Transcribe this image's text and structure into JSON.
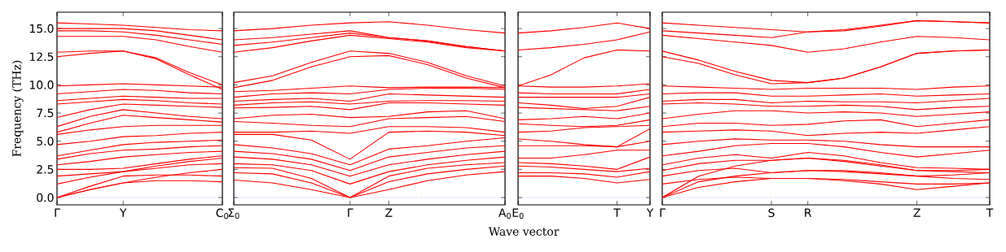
{
  "chart_data": [
    {
      "type": "line",
      "color": "#ff0000",
      "ylabel": "Frequency (THz)",
      "categories": [
        "Γ",
        null,
        "Y",
        null,
        null,
        "C$_{0}$"
      ],
      "ylim": [
        -0.65,
        16.45
      ],
      "yticks": [
        {
          "value": 0,
          "label": "0.0"
        },
        {
          "value": 2.5,
          "label": "2.5"
        },
        {
          "value": 5,
          "label": "5.0"
        },
        {
          "value": 7.5,
          "label": "7.5"
        },
        {
          "value": 10,
          "label": "10.0"
        },
        {
          "value": 12.5,
          "label": "12.5"
        },
        {
          "value": 15,
          "label": "15.0"
        }
      ],
      "ref_lines": [
        {
          "axis": "y",
          "value": 0,
          "color": "#0000ff",
          "line_style": "dotted"
        }
      ],
      "series": [
        {
          "values": [
            15.5,
            15.4,
            15.3,
            15.1,
            14.9,
            14.8
          ]
        },
        {
          "values": [
            15.0,
            15.0,
            15.0,
            14.8,
            14.4,
            14.0
          ]
        },
        {
          "values": [
            14.8,
            14.8,
            14.7,
            14.4,
            14.0,
            13.6
          ]
        },
        {
          "values": [
            14.3,
            14.3,
            14.3,
            14.0,
            13.4,
            12.9
          ]
        },
        {
          "values": [
            12.9,
            13.0,
            13.0,
            12.4,
            11.1,
            10.0
          ]
        },
        {
          "values": [
            12.5,
            12.8,
            13.0,
            12.3,
            10.9,
            9.6
          ]
        },
        {
          "values": [
            9.9,
            10.0,
            10.1,
            10.0,
            9.9,
            9.8
          ]
        },
        {
          "values": [
            9.2,
            9.4,
            9.6,
            9.5,
            9.3,
            9.2
          ]
        },
        {
          "values": [
            8.6,
            8.8,
            9.0,
            8.9,
            8.8,
            8.8
          ]
        },
        {
          "values": [
            8.3,
            8.5,
            8.7,
            8.6,
            8.4,
            8.3
          ]
        },
        {
          "values": [
            7.1,
            7.8,
            8.3,
            8.2,
            8.1,
            8.0
          ]
        },
        {
          "values": [
            6.3,
            7.2,
            7.8,
            7.5,
            7.2,
            7.0
          ]
        },
        {
          "values": [
            5.8,
            6.6,
            7.3,
            7.1,
            6.9,
            6.7
          ]
        },
        {
          "values": [
            5.6,
            6.0,
            6.3,
            6.4,
            6.4,
            6.4
          ]
        },
        {
          "values": [
            4.7,
            5.0,
            5.4,
            5.5,
            5.7,
            5.8
          ]
        },
        {
          "values": [
            3.7,
            4.2,
            4.7,
            4.9,
            5.0,
            5.1
          ]
        },
        {
          "values": [
            3.4,
            3.9,
            4.2,
            4.3,
            4.5,
            4.6
          ]
        },
        {
          "values": [
            2.9,
            3.2,
            3.6,
            3.8,
            4.0,
            4.1
          ]
        },
        {
          "values": [
            2.5,
            2.5,
            2.6,
            3.0,
            3.4,
            3.7
          ]
        },
        {
          "values": [
            1.9,
            2.1,
            2.3,
            2.8,
            3.2,
            3.5
          ]
        },
        {
          "values": [
            1.2,
            1.8,
            2.3,
            2.6,
            2.9,
            3.0
          ]
        },
        {
          "values": [
            0,
            0.7,
            1.3,
            1.8,
            2.2,
            2.5
          ]
        },
        {
          "values": [
            0,
            1.0,
            1.9,
            2.0,
            2.0,
            1.9
          ]
        },
        {
          "values": [
            0,
            0.7,
            1.3,
            1.5,
            1.5,
            1.4
          ]
        }
      ]
    },
    {
      "type": "line",
      "color": "#ff0000",
      "xlabel": "Wave vector",
      "tick_labels": "x",
      "categories": [
        "Σ$_{0}$",
        null,
        null,
        "Γ",
        "Z",
        null,
        null,
        "A$_{0}$"
      ],
      "ylim": [
        -0.65,
        16.45
      ],
      "yticks": [
        0,
        2.5,
        5,
        7.5,
        10,
        12.5,
        15
      ],
      "ref_lines": [
        {
          "axis": "y",
          "value": 0,
          "color": "#0000ff",
          "line_style": "dotted"
        }
      ],
      "series": [
        {
          "values": [
            14.8,
            15.0,
            15.3,
            15.5,
            15.6,
            15.3,
            14.9,
            14.6
          ]
        },
        {
          "values": [
            14.0,
            14.2,
            14.5,
            14.8,
            14.2,
            13.9,
            13.4,
            13.0
          ]
        },
        {
          "values": [
            13.5,
            13.8,
            14.2,
            14.6,
            14.2,
            13.9,
            13.4,
            13.0
          ]
        },
        {
          "values": [
            12.9,
            13.3,
            13.9,
            14.4,
            14.1,
            13.8,
            13.3,
            13.0
          ]
        },
        {
          "values": [
            10.2,
            10.8,
            12.0,
            13.0,
            12.8,
            12.0,
            10.8,
            9.9
          ]
        },
        {
          "values": [
            9.75,
            10.4,
            11.6,
            12.5,
            12.6,
            11.8,
            10.6,
            9.75
          ]
        },
        {
          "values": [
            9.4,
            9.5,
            9.7,
            9.9,
            9.75,
            9.8,
            9.8,
            9.75
          ]
        },
        {
          "values": [
            8.9,
            9.2,
            9.3,
            9.2,
            9.6,
            9.7,
            9.7,
            9.6
          ]
        },
        {
          "values": [
            8.55,
            8.7,
            8.8,
            8.55,
            9.2,
            9.1,
            9.0,
            8.9
          ]
        },
        {
          "values": [
            8.2,
            8.4,
            8.5,
            8.3,
            8.55,
            8.6,
            8.6,
            8.55
          ]
        },
        {
          "values": [
            7.95,
            8.0,
            8.1,
            7.8,
            8.4,
            8.4,
            8.3,
            8.2
          ]
        },
        {
          "values": [
            7.0,
            7.3,
            7.4,
            7.1,
            7.2,
            7.6,
            7.7,
            7.0
          ]
        },
        {
          "values": [
            6.75,
            6.6,
            6.4,
            6.3,
            7.0,
            7.1,
            7.2,
            6.75
          ]
        },
        {
          "values": [
            5.8,
            5.8,
            5.9,
            5.7,
            6.3,
            6.3,
            6.2,
            5.8
          ]
        },
        {
          "values": [
            5.6,
            5.6,
            5.1,
            3.4,
            5.8,
            5.9,
            5.8,
            5.5
          ]
        },
        {
          "values": [
            4.7,
            4.4,
            3.9,
            2.9,
            4.3,
            4.6,
            5.0,
            5.3
          ]
        },
        {
          "values": [
            4.1,
            3.9,
            3.4,
            2.4,
            3.6,
            4.0,
            4.4,
            4.6
          ]
        },
        {
          "values": [
            3.6,
            3.4,
            2.9,
            1.9,
            2.9,
            3.4,
            3.8,
            4.1
          ]
        },
        {
          "values": [
            3.0,
            2.9,
            2.4,
            1.2,
            2.3,
            2.9,
            3.3,
            3.6
          ]
        },
        {
          "values": [
            2.65,
            2.6,
            1.7,
            0,
            1.9,
            2.6,
            2.9,
            3.1
          ]
        },
        {
          "values": [
            2.2,
            2.1,
            1.3,
            0,
            1.4,
            2.1,
            2.5,
            2.8
          ]
        },
        {
          "values": [
            1.55,
            1.3,
            0.7,
            0,
            0.7,
            1.5,
            2.0,
            2.3
          ]
        }
      ]
    },
    {
      "type": "line",
      "color": "#ff0000",
      "tick_labels": "x",
      "categories": [
        "E$_{0}$",
        null,
        null,
        "T",
        "Y"
      ],
      "ylim": [
        -0.65,
        16.45
      ],
      "yticks": [
        0,
        2.5,
        5,
        7.5,
        10,
        12.5,
        15
      ],
      "ref_lines": [
        {
          "axis": "y",
          "value": 0,
          "color": "#0000ff",
          "line_style": "dotted"
        }
      ],
      "series": [
        {
          "values": [
            14.6,
            14.8,
            15.1,
            15.5,
            15.0
          ]
        },
        {
          "values": [
            13.1,
            13.3,
            13.6,
            14.0,
            14.7
          ]
        },
        {
          "values": [
            9.9,
            10.9,
            12.4,
            13.1,
            13.0
          ]
        },
        {
          "values": [
            9.9,
            9.8,
            9.8,
            9.9,
            10.1
          ]
        },
        {
          "values": [
            9.3,
            9.2,
            9.2,
            9.2,
            9.6
          ]
        },
        {
          "values": [
            8.9,
            8.9,
            8.9,
            8.9,
            9.2
          ]
        },
        {
          "values": [
            8.4,
            8.2,
            7.9,
            8.1,
            8.9
          ]
        },
        {
          "values": [
            8.0,
            7.9,
            7.8,
            7.7,
            8.1
          ]
        },
        {
          "values": [
            6.9,
            7.0,
            7.2,
            7.0,
            7.5
          ]
        },
        {
          "values": [
            6.55,
            6.4,
            6.3,
            6.4,
            6.9
          ]
        },
        {
          "values": [
            5.8,
            5.9,
            6.2,
            6.3,
            6.4
          ]
        },
        {
          "values": [
            5.2,
            5.0,
            4.7,
            4.5,
            6.1
          ]
        },
        {
          "values": [
            4.6,
            4.6,
            4.6,
            4.5,
            5.0
          ]
        },
        {
          "values": [
            3.5,
            3.5,
            3.8,
            4.2,
            4.2
          ]
        },
        {
          "values": [
            3.1,
            3.0,
            2.8,
            2.5,
            3.6
          ]
        },
        {
          "values": [
            2.8,
            2.7,
            2.5,
            2.3,
            2.6
          ]
        },
        {
          "values": [
            2.2,
            2.2,
            2.1,
            1.8,
            2.3
          ]
        },
        {
          "values": [
            1.9,
            1.9,
            1.7,
            1.3,
            1.6
          ]
        }
      ]
    },
    {
      "type": "line",
      "color": "#ff0000",
      "tick_labels": "x",
      "categories": [
        "Γ",
        null,
        null,
        "S",
        "R",
        null,
        null,
        "Z",
        null,
        "T"
      ],
      "ylim": [
        -0.65,
        16.45
      ],
      "yticks": [
        0,
        2.5,
        5,
        7.5,
        10,
        12.5,
        15
      ],
      "ref_lines": [
        {
          "axis": "y",
          "value": 0,
          "color": "#0000ff",
          "line_style": "dotted"
        }
      ],
      "series": [
        {
          "values": [
            15.5,
            15.3,
            15.1,
            14.9,
            14.7,
            14.9,
            15.3,
            15.7,
            15.6,
            15.5
          ]
        },
        {
          "values": [
            14.8,
            14.6,
            14.4,
            14.2,
            14.7,
            14.8,
            15.2,
            15.7,
            15.6,
            15.5
          ]
        },
        {
          "values": [
            14.4,
            14.1,
            13.8,
            13.5,
            12.9,
            13.2,
            13.8,
            14.3,
            14.2,
            14.0
          ]
        },
        {
          "values": [
            13.0,
            12.2,
            11.2,
            10.4,
            10.2,
            10.6,
            11.6,
            12.8,
            13.0,
            13.1
          ]
        },
        {
          "values": [
            12.5,
            11.9,
            10.9,
            10.1,
            10.2,
            10.6,
            11.6,
            12.8,
            13.0,
            13.1
          ]
        },
        {
          "values": [
            9.9,
            9.8,
            9.7,
            9.6,
            9.7,
            9.7,
            9.7,
            9.6,
            9.8,
            9.9
          ]
        },
        {
          "values": [
            9.2,
            9.3,
            9.3,
            9.0,
            9.0,
            9.1,
            9.2,
            9.0,
            9.1,
            9.2
          ]
        },
        {
          "values": [
            8.55,
            8.7,
            8.7,
            8.4,
            8.55,
            8.5,
            8.5,
            8.4,
            8.6,
            8.8
          ]
        },
        {
          "values": [
            8.3,
            8.4,
            8.3,
            8.1,
            8.1,
            8.2,
            8.1,
            7.8,
            8.0,
            8.1
          ]
        },
        {
          "values": [
            7.0,
            7.4,
            7.7,
            7.7,
            7.5,
            7.6,
            7.5,
            7.2,
            7.4,
            7.6
          ]
        },
        {
          "values": [
            6.3,
            6.6,
            6.6,
            6.4,
            6.5,
            6.8,
            6.9,
            6.3,
            6.6,
            6.9
          ]
        },
        {
          "values": [
            5.8,
            5.9,
            6.0,
            5.9,
            5.5,
            5.7,
            5.8,
            5.7,
            6.0,
            6.3
          ]
        },
        {
          "values": [
            4.7,
            5.0,
            5.2,
            5.1,
            5.1,
            5.0,
            4.7,
            4.5,
            4.5,
            4.5
          ]
        },
        {
          "values": [
            3.7,
            4.1,
            4.6,
            4.8,
            4.8,
            4.5,
            4.0,
            3.6,
            3.9,
            4.2
          ]
        },
        {
          "values": [
            2.9,
            3.5,
            3.8,
            3.5,
            4.0,
            3.7,
            3.1,
            2.65,
            2.6,
            2.5
          ]
        },
        {
          "values": [
            2.4,
            3.0,
            3.3,
            3.3,
            3.5,
            3.3,
            2.9,
            2.4,
            2.3,
            2.2
          ]
        },
        {
          "values": [
            1.9,
            2.4,
            2.6,
            2.2,
            2.4,
            2.4,
            2.2,
            1.9,
            1.7,
            1.6
          ]
        },
        {
          "values": [
            1.2,
            1.6,
            1.8,
            1.7,
            1.7,
            1.6,
            1.4,
            1.2,
            1.2,
            1.3
          ]
        },
        {
          "values": [
            0,
            0.9,
            1.4,
            1.7,
            1.7,
            1.5,
            1.2,
            0.7,
            1.0,
            1.3
          ]
        },
        {
          "values": [
            0,
            1.4,
            1.9,
            2.2,
            2.4,
            2.3,
            2.1,
            1.9,
            2.0,
            2.2
          ]
        },
        {
          "values": [
            0,
            1.9,
            2.8,
            3.3,
            3.5,
            3.2,
            2.8,
            2.4,
            2.4,
            2.5
          ]
        }
      ]
    }
  ]
}
